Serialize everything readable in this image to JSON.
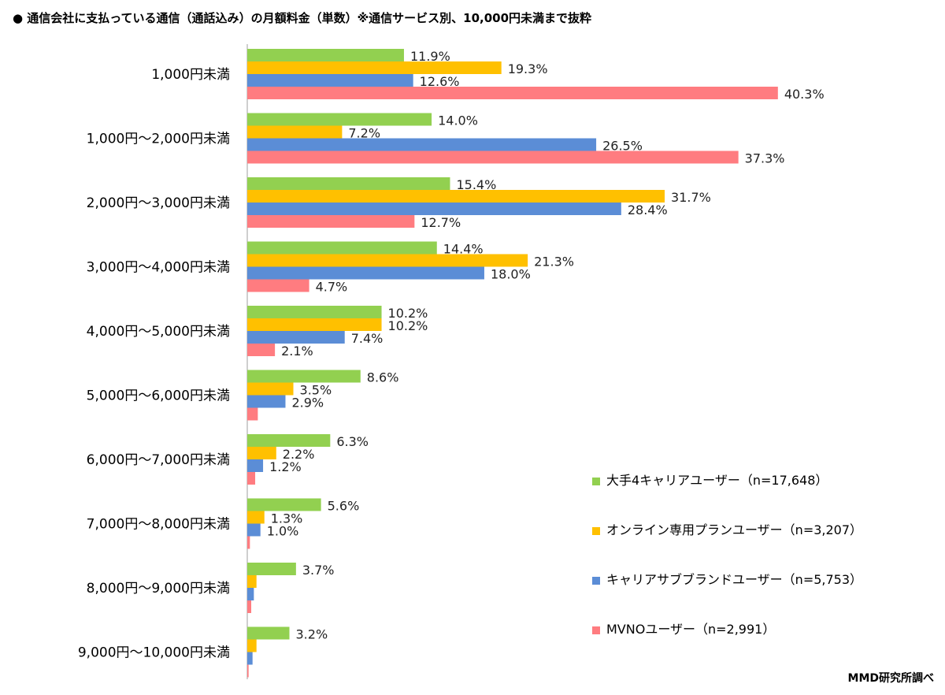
{
  "title": "●  通信会社に支払っている通信（通話込み）の月額料金（単数）※通信サービス別、10,000円未満まで抜粋",
  "source": "MMD研究所調べ",
  "chart_data": {
    "type": "bar",
    "orientation": "horizontal",
    "title": "●  通信会社に支払っている通信（通話込み）の月額料金（単数）※通信サービス別、10,000円未満まで抜粋",
    "categories": [
      "1,000円未満",
      "1,000円～2,000円未満",
      "2,000円～3,000円未満",
      "3,000円～4,000円未満",
      "4,000円～5,000円未満",
      "5,000円～6,000円未満",
      "6,000円～7,000円未満",
      "7,000円～8,000円未満",
      "8,000円～9,000円未満",
      "9,000円～10,000円未満"
    ],
    "series": [
      {
        "name": "大手4キャリアユーザー（n=17,648）",
        "color": "#92d050",
        "values": [
          11.9,
          14.0,
          15.4,
          14.4,
          10.2,
          8.6,
          6.3,
          5.6,
          3.7,
          3.2
        ],
        "labeled": [
          true,
          true,
          true,
          true,
          true,
          true,
          true,
          true,
          true,
          true
        ]
      },
      {
        "name": "オンライン専用プランユーザー（n=3,207）",
        "color": "#ffc000",
        "values": [
          19.3,
          7.2,
          31.7,
          21.3,
          10.2,
          3.5,
          2.2,
          1.3,
          0.7,
          0.7
        ],
        "labeled": [
          true,
          true,
          true,
          true,
          true,
          true,
          true,
          true,
          false,
          false
        ]
      },
      {
        "name": "キャリアサブブランドユーザー（n=5,753）",
        "color": "#5b8dd6",
        "values": [
          12.6,
          26.5,
          28.4,
          18.0,
          7.4,
          2.9,
          1.2,
          1.0,
          0.5,
          0.4
        ],
        "labeled": [
          true,
          true,
          true,
          true,
          true,
          true,
          true,
          true,
          false,
          false
        ]
      },
      {
        "name": "MVNOユーザー（n=2,991）",
        "color": "#ff7c80",
        "values": [
          40.3,
          37.3,
          12.7,
          4.7,
          2.1,
          0.8,
          0.6,
          0.2,
          0.3,
          0.1
        ],
        "labeled": [
          true,
          true,
          true,
          true,
          true,
          false,
          false,
          false,
          false,
          false
        ]
      }
    ],
    "value_format": "%",
    "xlim": [
      0,
      42
    ],
    "grid": false,
    "legend_position": "bottom-right"
  }
}
